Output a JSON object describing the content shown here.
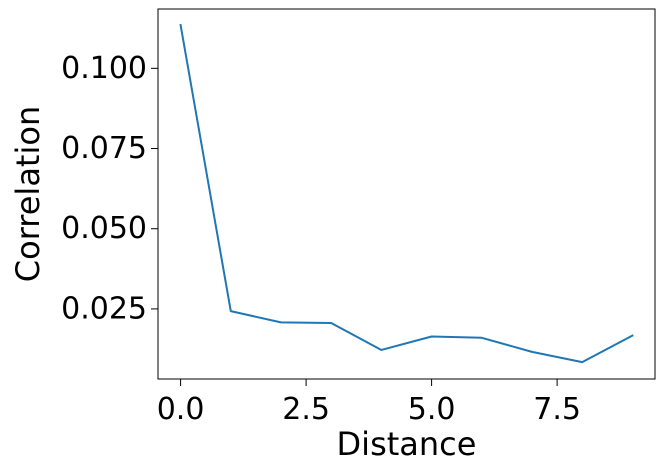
{
  "chart_data": {
    "type": "line",
    "title": "",
    "xlabel": "Distance",
    "ylabel": "Correlation",
    "xlim": [
      -0.45,
      9.45
    ],
    "ylim": [
      0.00315,
      0.1185
    ],
    "xticks": [
      0.0,
      2.5,
      5.0,
      7.5
    ],
    "xtick_labels": [
      "0.0",
      "2.5",
      "5.0",
      "7.5"
    ],
    "yticks": [
      0.025,
      0.05,
      0.075,
      0.1
    ],
    "ytick_labels": [
      "0.025",
      "0.050",
      "0.075",
      "0.100"
    ],
    "grid": false,
    "legend": "none",
    "series": [
      {
        "color": "#1f77b4",
        "x": [
          0,
          1,
          2,
          3,
          4,
          5,
          6,
          7,
          8,
          9
        ],
        "y": [
          0.1135,
          0.0243,
          0.0208,
          0.0206,
          0.0122,
          0.0164,
          0.016,
          0.0116,
          0.0084,
          0.0167
        ]
      }
    ]
  }
}
